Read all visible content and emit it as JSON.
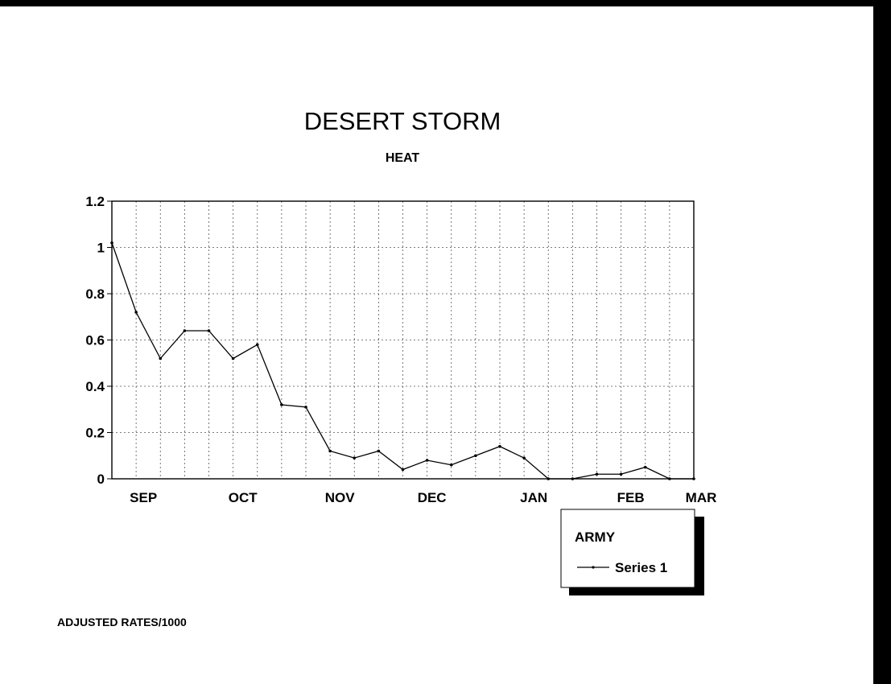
{
  "chart_data": {
    "type": "line",
    "title": "DESERT STORM",
    "subtitle": "HEAT",
    "footnote": "ADJUSTED RATES/1000",
    "categories": [
      "SEP",
      "OCT",
      "NOV",
      "DEC",
      "JAN",
      "FEB",
      "MAR"
    ],
    "ylim": [
      0,
      1.2
    ],
    "yticks": [
      "0",
      "0.2",
      "0.4",
      "0.6",
      "0.8",
      "1",
      "1.2"
    ],
    "grid": true,
    "legend": {
      "title": "ARMY",
      "position": "bottom-right",
      "entries": [
        "Series 1"
      ]
    },
    "series": [
      {
        "name": "Series 1",
        "x": [
          0,
          1,
          2,
          3,
          4,
          5,
          6,
          7,
          8,
          9,
          10,
          11,
          12,
          13,
          14,
          15,
          16,
          17,
          18,
          19,
          20,
          21,
          22,
          23,
          24
        ],
        "values": [
          1.02,
          0.72,
          0.52,
          0.64,
          0.64,
          0.52,
          0.58,
          0.32,
          0.31,
          0.12,
          0.09,
          0.12,
          0.04,
          0.08,
          0.06,
          0.1,
          0.14,
          0.09,
          0.0,
          0.0,
          0.02,
          0.02,
          0.05,
          0.0,
          0.0
        ]
      }
    ],
    "color": "#000000"
  }
}
